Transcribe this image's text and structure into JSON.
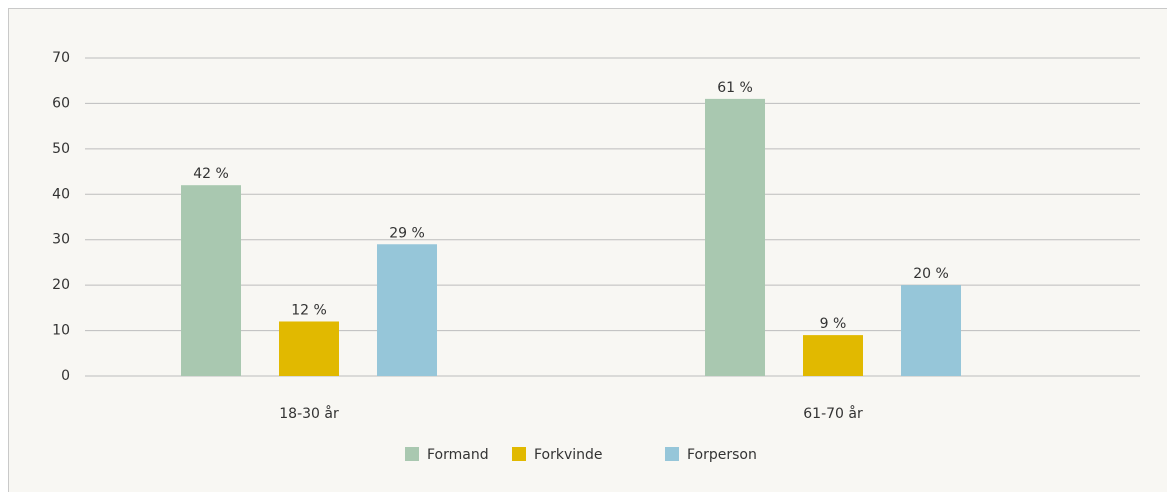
{
  "chart_data": {
    "type": "bar",
    "categories": [
      "18-30 år",
      "61-70 år"
    ],
    "series": [
      {
        "name": "Formand",
        "color": "#a9c8b0",
        "values": [
          42,
          61
        ],
        "value_labels": [
          "42 %",
          "61 %"
        ]
      },
      {
        "name": "Forkvinde",
        "color": "#e1b900",
        "values": [
          12,
          9
        ],
        "value_labels": [
          "12 %",
          "9 %"
        ]
      },
      {
        "name": "Forperson",
        "color": "#96c6d9",
        "values": [
          29,
          20
        ],
        "value_labels": [
          "29 %",
          "20 %"
        ]
      }
    ],
    "ylim": [
      0,
      70
    ],
    "yticks": [
      0,
      10,
      20,
      30,
      40,
      50,
      60,
      70
    ],
    "grid": true,
    "legend": "bottom"
  }
}
